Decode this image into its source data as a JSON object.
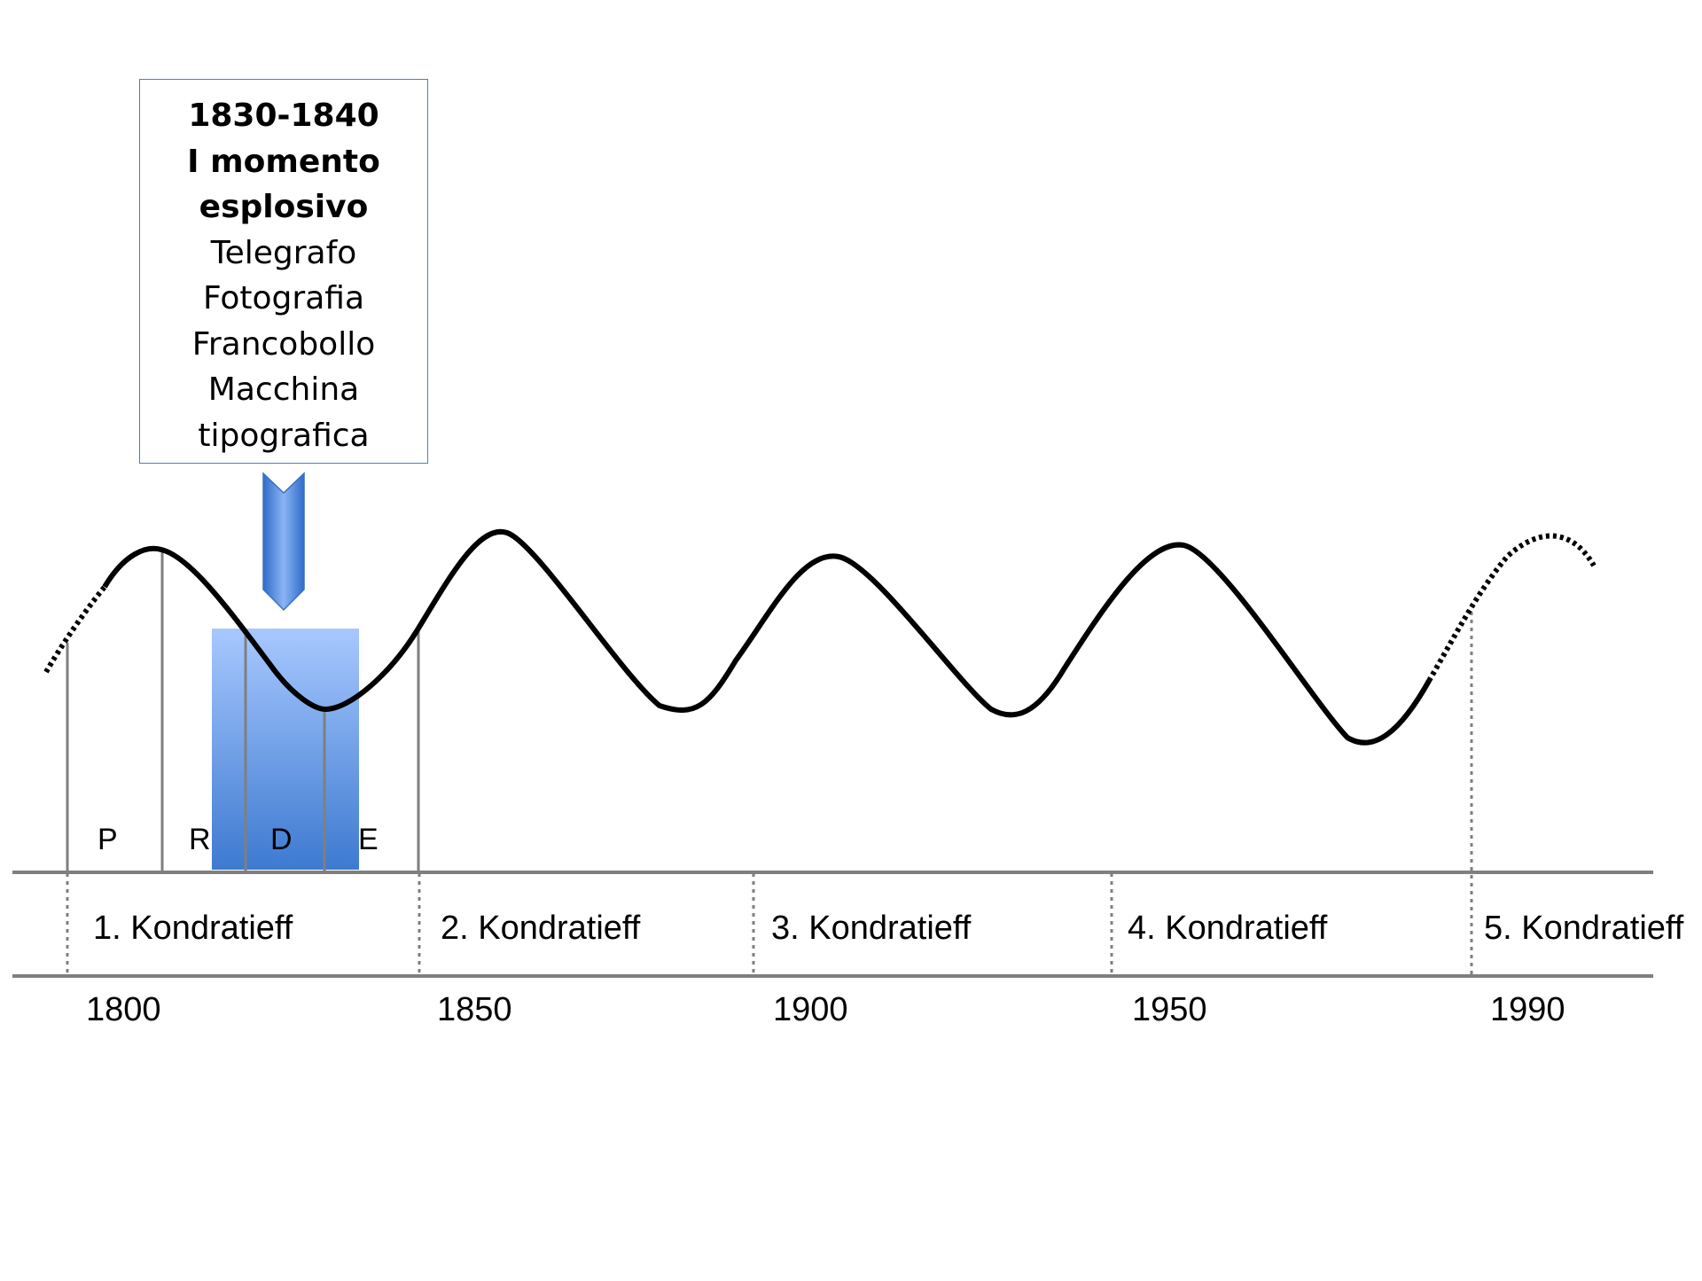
{
  "callout": {
    "heading_lines": [
      "1830-1840",
      "I momento",
      "esplosivo"
    ],
    "item_lines": [
      "Telegrafo",
      "Fotografia",
      "Francobollo",
      "Macchina",
      "tipografica"
    ],
    "border_color": "#4a7ec2"
  },
  "phases": [
    {
      "label": "P"
    },
    {
      "label": "R"
    },
    {
      "label": "D"
    },
    {
      "label": "E"
    }
  ],
  "waves": [
    {
      "label": "1. Kondratieff"
    },
    {
      "label": "2. Kondratieff"
    },
    {
      "label": "3. Kondratieff"
    },
    {
      "label": "4. Kondratieff"
    },
    {
      "label": "5. Kondratieff"
    }
  ],
  "years": [
    {
      "label": "1800"
    },
    {
      "label": "1850"
    },
    {
      "label": "1900"
    },
    {
      "label": "1950"
    },
    {
      "label": "1990"
    }
  ],
  "colors": {
    "highlight_top": "#a8c8ff",
    "highlight_bottom": "#3d7ad0",
    "arrow": "#4a86d6",
    "axis_line": "#7f7f7f",
    "curve": "#000000"
  }
}
